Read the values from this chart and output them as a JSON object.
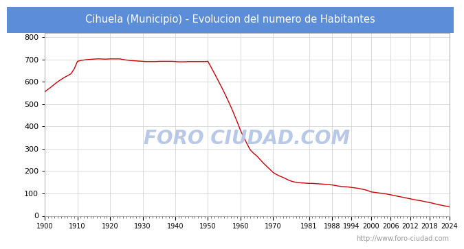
{
  "title": "Cihuela (Municipio) - Evolucion del numero de Habitantes",
  "title_bg_color": "#5b8dd9",
  "title_text_color": "white",
  "plot_bg_color": "#ffffff",
  "outer_bg_color": "#ffffff",
  "line_color": "#cc0000",
  "grid_color": "#cccccc",
  "watermark_chart": "FORO CIUDAD.COM",
  "watermark_chart_color": "#b8c8e8",
  "watermark_url": "http://www.foro-ciudad.com",
  "watermark_url_color": "#999999",
  "years": [
    1900,
    1901,
    1902,
    1903,
    1904,
    1905,
    1906,
    1907,
    1908,
    1909,
    1910,
    1911,
    1912,
    1913,
    1914,
    1915,
    1916,
    1917,
    1918,
    1919,
    1920,
    1921,
    1922,
    1923,
    1924,
    1925,
    1926,
    1927,
    1928,
    1929,
    1930,
    1931,
    1932,
    1933,
    1934,
    1935,
    1936,
    1937,
    1938,
    1939,
    1940,
    1941,
    1942,
    1943,
    1944,
    1945,
    1946,
    1947,
    1948,
    1949,
    1950,
    1951,
    1952,
    1953,
    1954,
    1955,
    1956,
    1957,
    1958,
    1959,
    1960,
    1961,
    1962,
    1963,
    1964,
    1965,
    1966,
    1967,
    1968,
    1969,
    1970,
    1971,
    1972,
    1973,
    1974,
    1975,
    1976,
    1977,
    1978,
    1979,
    1980,
    1981,
    1982,
    1983,
    1984,
    1985,
    1986,
    1987,
    1988,
    1989,
    1990,
    1991,
    1992,
    1993,
    1994,
    1995,
    1996,
    1997,
    1998,
    1999,
    2000,
    2001,
    2002,
    2003,
    2004,
    2005,
    2006,
    2007,
    2008,
    2009,
    2010,
    2011,
    2012,
    2013,
    2014,
    2015,
    2016,
    2017,
    2018,
    2019,
    2020,
    2021,
    2022,
    2023,
    2024
  ],
  "population": [
    556,
    567,
    578,
    590,
    601,
    611,
    620,
    628,
    636,
    658,
    692,
    696,
    698,
    700,
    701,
    702,
    703,
    703,
    702,
    702,
    703,
    703,
    703,
    703,
    700,
    698,
    696,
    695,
    694,
    693,
    692,
    691,
    691,
    691,
    691,
    692,
    692,
    692,
    692,
    692,
    691,
    690,
    690,
    690,
    691,
    691,
    691,
    691,
    691,
    691,
    692,
    665,
    638,
    610,
    582,
    553,
    522,
    490,
    456,
    420,
    382,
    352,
    322,
    295,
    280,
    268,
    252,
    236,
    222,
    208,
    194,
    185,
    178,
    172,
    165,
    158,
    153,
    150,
    148,
    147,
    146,
    145,
    145,
    144,
    143,
    142,
    141,
    140,
    138,
    136,
    133,
    131,
    130,
    129,
    127,
    125,
    123,
    120,
    117,
    113,
    107,
    105,
    103,
    101,
    99,
    97,
    94,
    91,
    88,
    85,
    82,
    79,
    76,
    73,
    70,
    68,
    65,
    62,
    59,
    56,
    52,
    49,
    46,
    43,
    40
  ],
  "xticks": [
    1900,
    1910,
    1920,
    1930,
    1940,
    1950,
    1960,
    1970,
    1981,
    1988,
    1994,
    2000,
    2006,
    2012,
    2018,
    2024
  ],
  "yticks": [
    0,
    100,
    200,
    300,
    400,
    500,
    600,
    700,
    800
  ],
  "ylim": [
    0,
    820
  ],
  "xlim": [
    1900,
    2024
  ]
}
